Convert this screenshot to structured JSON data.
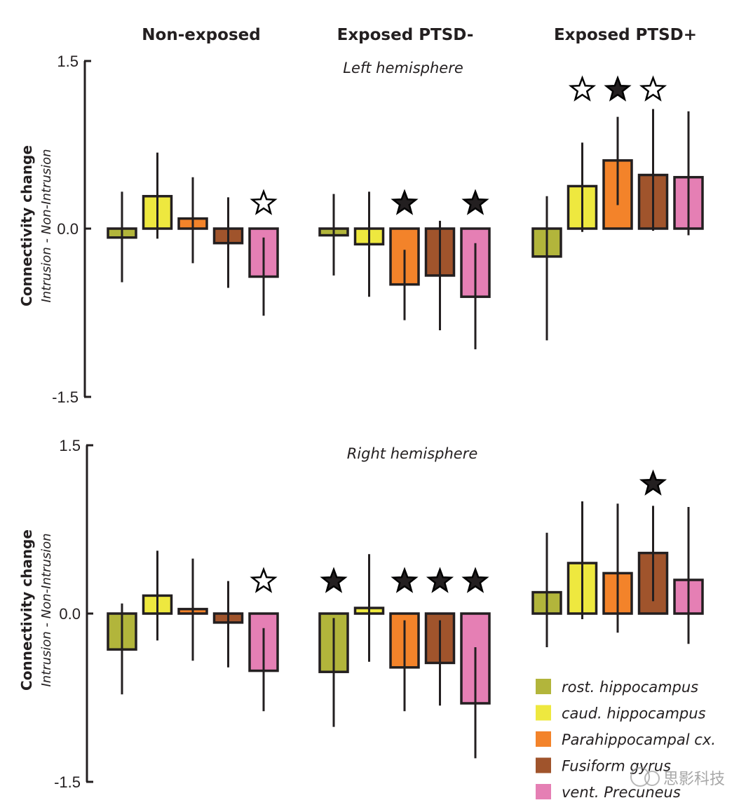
{
  "chart_data": {
    "type": "bar",
    "title": "",
    "groups": [
      "Non-exposed",
      "Exposed PTSD-",
      "Exposed PTSD+"
    ],
    "categories": [
      "rost. hippocampus",
      "caud. hippocampus",
      "Parahippocampal cx.",
      "Fusiform gyrus",
      "vent. Precuneus"
    ],
    "colors": [
      "#b2b53b",
      "#eee83f",
      "#f3832a",
      "#a0542c",
      "#e57fb4"
    ],
    "ylabel": "Connectivity change",
    "ylabel_sub": "Intrusion - Non-Intrusion",
    "ylim": [
      -1.5,
      1.5
    ],
    "yticks": [
      "1.5",
      "0.0",
      "-1.5"
    ],
    "grid": false,
    "legend_position": "bottom-right",
    "panels": [
      {
        "name": "Left hemisphere",
        "groups": [
          {
            "group": "Non-exposed",
            "values": [
              -0.08,
              0.29,
              0.09,
              -0.13,
              -0.43
            ],
            "err_high": [
              0.33,
              0.68,
              0.46,
              0.28,
              -0.08
            ],
            "err_low": [
              -0.48,
              -0.09,
              -0.31,
              -0.53,
              -0.78
            ],
            "markers": [
              "none",
              "none",
              "none",
              "none",
              "open-star"
            ]
          },
          {
            "group": "Exposed PTSD-",
            "values": [
              -0.06,
              -0.14,
              -0.5,
              -0.42,
              -0.61
            ],
            "err_high": [
              0.31,
              0.33,
              -0.19,
              0.07,
              -0.13
            ],
            "err_low": [
              -0.42,
              -0.61,
              -0.82,
              -0.91,
              -1.08
            ],
            "markers": [
              "none",
              "none",
              "filled-star",
              "none",
              "filled-star"
            ]
          },
          {
            "group": "Exposed PTSD+",
            "values": [
              -0.25,
              0.38,
              0.61,
              0.48,
              0.46
            ],
            "err_high": [
              0.29,
              0.77,
              1.0,
              1.07,
              1.05
            ],
            "err_low": [
              -1.0,
              -0.03,
              0.21,
              -0.02,
              -0.06
            ],
            "markers": [
              "none",
              "open-star",
              "filled-star",
              "open-star",
              "none"
            ]
          }
        ]
      },
      {
        "name": "Right hemisphere",
        "groups": [
          {
            "group": "Non-exposed",
            "values": [
              -0.32,
              0.16,
              0.04,
              -0.08,
              -0.51
            ],
            "err_high": [
              0.09,
              0.56,
              0.49,
              0.29,
              -0.13
            ],
            "err_low": [
              -0.72,
              -0.24,
              -0.42,
              -0.48,
              -0.87
            ],
            "markers": [
              "none",
              "none",
              "none",
              "none",
              "open-star"
            ]
          },
          {
            "group": "Exposed PTSD-",
            "values": [
              -0.52,
              0.05,
              -0.48,
              -0.44,
              -0.8
            ],
            "err_high": [
              -0.04,
              0.53,
              -0.06,
              -0.06,
              -0.3
            ],
            "err_low": [
              -1.01,
              -0.43,
              -0.87,
              -0.82,
              -1.29
            ],
            "markers": [
              "filled-star",
              "none",
              "filled-star",
              "filled-star",
              "filled-star"
            ]
          },
          {
            "group": "Exposed PTSD+",
            "values": [
              0.19,
              0.45,
              0.36,
              0.54,
              0.3
            ],
            "err_high": [
              0.72,
              1.0,
              0.98,
              0.96,
              0.95
            ],
            "err_low": [
              -0.3,
              -0.05,
              -0.17,
              0.11,
              -0.27
            ],
            "markers": [
              "none",
              "none",
              "none",
              "filled-star",
              "none"
            ]
          }
        ]
      }
    ]
  },
  "watermark": "思影科技"
}
